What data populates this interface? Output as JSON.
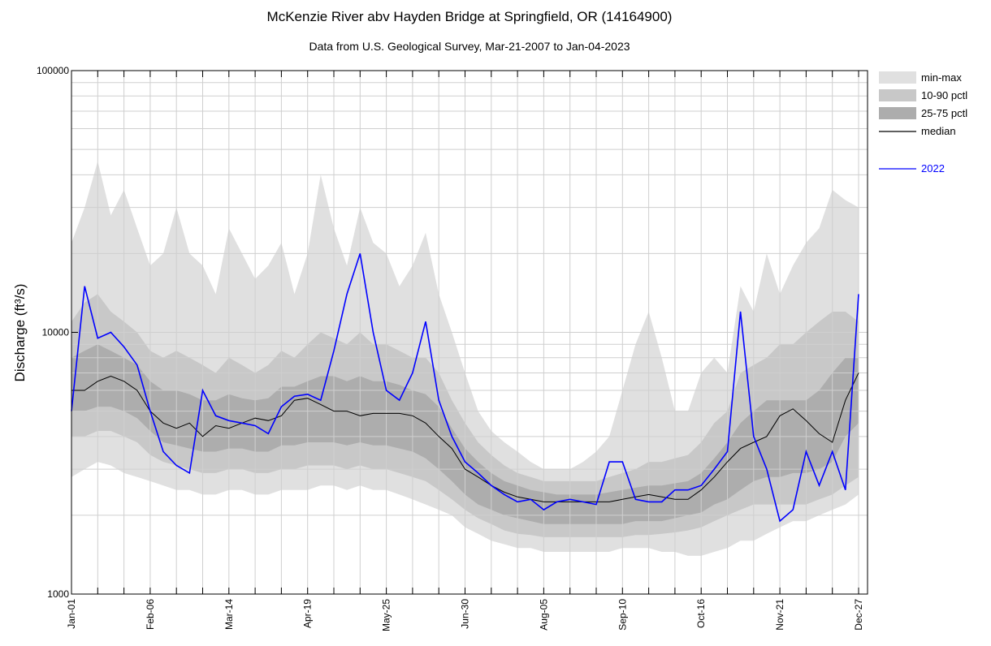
{
  "chart_data": {
    "type": "band_line",
    "title": "McKenzie River abv Hayden Bridge at Springfield, OR (14164900)",
    "subtitle": "Data from U.S. Geological Survey, Mar-21-2007 to Jan-04-2023",
    "ylabel": "Discharge (ft³/s)",
    "log_y": true,
    "grid": true,
    "legend": "right",
    "ylim": [
      1000,
      100000
    ],
    "yticks": [
      1000,
      10000,
      100000
    ],
    "categories": [
      "Jan-01",
      null,
      null,
      null,
      null,
      null,
      "Feb-06",
      null,
      null,
      null,
      null,
      null,
      "Mar-14",
      null,
      null,
      null,
      null,
      null,
      "Apr-19",
      null,
      null,
      null,
      null,
      null,
      "May-25",
      null,
      null,
      null,
      null,
      null,
      "Jun-30",
      null,
      null,
      null,
      null,
      null,
      "Aug-05",
      null,
      null,
      null,
      null,
      null,
      "Sep-10",
      null,
      null,
      null,
      null,
      null,
      "Oct-16",
      null,
      null,
      null,
      null,
      null,
      "Nov-21",
      null,
      null,
      null,
      null,
      null,
      "Dec-27"
    ],
    "bands": [
      {
        "name": "min-max",
        "color": "#e0e0e0",
        "low": [
          2800,
          3000,
          3200,
          3100,
          2900,
          2800,
          2700,
          2600,
          2500,
          2500,
          2400,
          2400,
          2500,
          2500,
          2400,
          2400,
          2500,
          2500,
          2500,
          2600,
          2600,
          2500,
          2600,
          2500,
          2500,
          2400,
          2300,
          2200,
          2100,
          2000,
          1800,
          1700,
          1600,
          1550,
          1500,
          1500,
          1450,
          1450,
          1450,
          1450,
          1450,
          1450,
          1500,
          1500,
          1500,
          1450,
          1450,
          1400,
          1400,
          1450,
          1500,
          1600,
          1600,
          1700,
          1800,
          1900,
          1900,
          2000,
          2100,
          2200,
          2400
        ],
        "high": [
          22000,
          30000,
          45000,
          28000,
          35000,
          25000,
          18000,
          20000,
          30000,
          20000,
          18000,
          14000,
          25000,
          20000,
          16000,
          18000,
          22000,
          14000,
          20000,
          40000,
          25000,
          18000,
          30000,
          22000,
          20000,
          15000,
          18000,
          24000,
          14000,
          10000,
          7000,
          5000,
          4200,
          3800,
          3500,
          3200,
          3000,
          3000,
          3000,
          3200,
          3500,
          4000,
          6000,
          9000,
          12000,
          8000,
          5000,
          5000,
          7000,
          8000,
          7000,
          15000,
          12000,
          20000,
          14000,
          18000,
          22000,
          25000,
          35000,
          32000,
          30000
        ]
      },
      {
        "name": "10-90 pctl",
        "color": "#c8c8c8",
        "low": [
          4000,
          4000,
          4200,
          4200,
          4000,
          3800,
          3400,
          3200,
          3100,
          3000,
          2900,
          2900,
          3000,
          3000,
          2900,
          2900,
          3000,
          3000,
          3100,
          3100,
          3100,
          3000,
          3100,
          3000,
          3000,
          2900,
          2800,
          2700,
          2500,
          2300,
          2100,
          1950,
          1850,
          1750,
          1700,
          1680,
          1650,
          1650,
          1650,
          1650,
          1650,
          1650,
          1650,
          1680,
          1680,
          1700,
          1720,
          1750,
          1800,
          1900,
          2000,
          2100,
          2200,
          2200,
          2200,
          2200,
          2200,
          2300,
          2400,
          2600,
          2800
        ],
        "high": [
          11000,
          13000,
          14000,
          12000,
          11000,
          10000,
          8500,
          8000,
          8500,
          8000,
          7500,
          7000,
          8000,
          7500,
          7000,
          7500,
          8500,
          8000,
          9000,
          10000,
          9500,
          9000,
          10000,
          9000,
          9000,
          8500,
          8000,
          8000,
          7000,
          5500,
          4500,
          3800,
          3400,
          3100,
          2900,
          2800,
          2700,
          2700,
          2700,
          2700,
          2700,
          2800,
          2900,
          3000,
          3200,
          3200,
          3300,
          3400,
          3800,
          4500,
          5000,
          7000,
          7500,
          8000,
          9000,
          9000,
          10000,
          11000,
          12000,
          12000,
          11000
        ]
      },
      {
        "name": "25-75 pctl",
        "color": "#adadad",
        "low": [
          5000,
          5000,
          5200,
          5200,
          5000,
          4700,
          4200,
          3800,
          3700,
          3600,
          3500,
          3500,
          3600,
          3600,
          3500,
          3500,
          3700,
          3700,
          3800,
          3800,
          3800,
          3700,
          3800,
          3700,
          3700,
          3600,
          3500,
          3300,
          3000,
          2700,
          2400,
          2200,
          2100,
          2000,
          1950,
          1900,
          1850,
          1850,
          1850,
          1850,
          1850,
          1850,
          1850,
          1900,
          1900,
          1900,
          1950,
          2000,
          2050,
          2200,
          2300,
          2500,
          2700,
          2800,
          2800,
          2900,
          2900,
          3000,
          3200,
          4000,
          4500
        ],
        "high": [
          8000,
          8500,
          9000,
          8500,
          8000,
          7500,
          6500,
          6000,
          6000,
          5800,
          5500,
          5500,
          5800,
          5600,
          5500,
          5600,
          6200,
          6200,
          6500,
          6800,
          6800,
          6500,
          6800,
          6500,
          6500,
          6300,
          6000,
          5800,
          5200,
          4300,
          3600,
          3200,
          2900,
          2700,
          2600,
          2500,
          2450,
          2400,
          2400,
          2400,
          2400,
          2450,
          2500,
          2550,
          2600,
          2600,
          2650,
          2700,
          2900,
          3300,
          3800,
          4500,
          5000,
          5500,
          5500,
          5500,
          5500,
          6000,
          7000,
          8000,
          8000
        ]
      }
    ],
    "series": [
      {
        "name": "median",
        "color": "#000000",
        "values": [
          6000,
          6000,
          6500,
          6800,
          6500,
          6000,
          5000,
          4500,
          4300,
          4500,
          4000,
          4400,
          4300,
          4500,
          4700,
          4600,
          4800,
          5500,
          5600,
          5300,
          5000,
          5000,
          4800,
          4900,
          4900,
          4900,
          4800,
          4500,
          4000,
          3600,
          3000,
          2800,
          2600,
          2450,
          2350,
          2300,
          2250,
          2250,
          2250,
          2250,
          2250,
          2250,
          2300,
          2350,
          2400,
          2350,
          2300,
          2300,
          2500,
          2800,
          3200,
          3600,
          3800,
          4000,
          4800,
          5100,
          4600,
          4100,
          3800,
          5500,
          7000
        ]
      },
      {
        "name": "2022",
        "color": "#0000ff",
        "values": [
          5000,
          15000,
          9500,
          10000,
          8800,
          7500,
          5000,
          3500,
          3100,
          2900,
          6000,
          4800,
          4600,
          4500,
          4400,
          4100,
          5200,
          5700,
          5800,
          5500,
          8500,
          14000,
          20000,
          10000,
          6000,
          5500,
          7000,
          11000,
          5500,
          4000,
          3200,
          2900,
          2600,
          2400,
          2250,
          2300,
          2100,
          2250,
          2300,
          2250,
          2200,
          3200,
          3200,
          2300,
          2250,
          2250,
          2500,
          2500,
          2600,
          3000,
          3500,
          12000,
          4000,
          3000,
          1900,
          2100,
          3500,
          2600,
          3500,
          2500,
          14000
        ]
      }
    ]
  }
}
